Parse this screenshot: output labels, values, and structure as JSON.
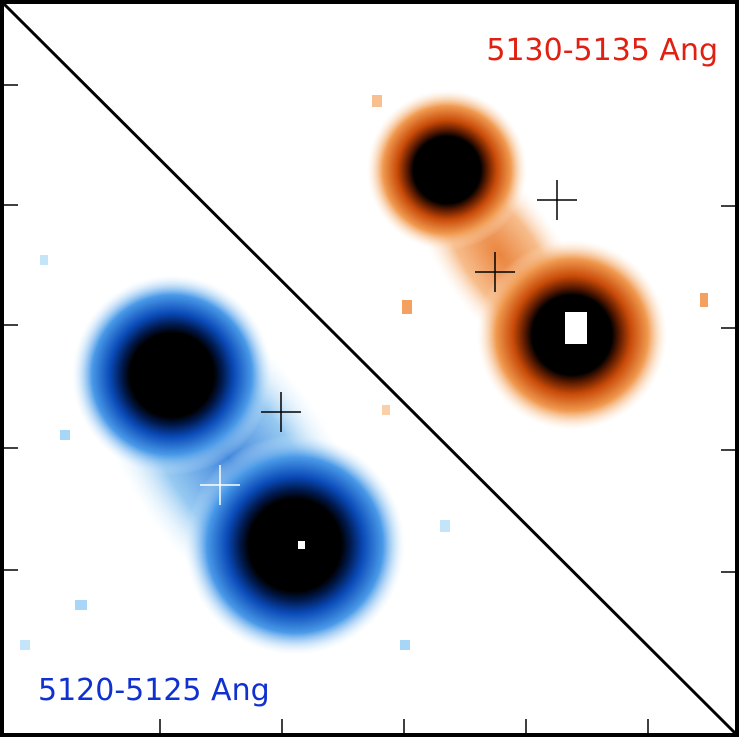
{
  "panels": {
    "upper_right": {
      "label": "5130-5135 Ang"
    },
    "lower_left": {
      "label": "5120-5125 Ang"
    }
  }
}
